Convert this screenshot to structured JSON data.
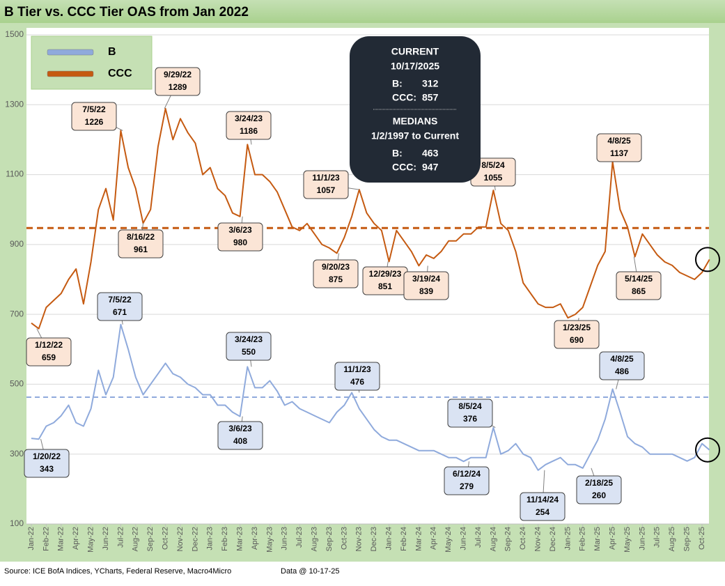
{
  "chart_data": {
    "type": "line",
    "title": "B Tier vs. CCC Tier OAS from Jan 2022",
    "source": "Source: ICE BofA Indices, YCharts, Federal Reserve, Macro4Micro",
    "data_note": "Data @ 10-17-25",
    "categories": [
      "Jan-22",
      null,
      "Feb-22",
      null,
      "Mar-22",
      null,
      "Apr-22",
      null,
      "May-22",
      null,
      "Jun-22",
      null,
      "Jul-22",
      null,
      "Aug-22",
      null,
      "Sep-22",
      null,
      "Oct-22",
      null,
      "Nov-22",
      null,
      "Dec-22",
      null,
      "Jan-23",
      null,
      "Feb-23",
      null,
      "Mar-23",
      null,
      "Apr-23",
      null,
      "May-23",
      null,
      "Jun-23",
      null,
      "Jul-23",
      null,
      "Aug-23",
      null,
      "Sep-23",
      null,
      "Oct-23",
      null,
      "Nov-23",
      null,
      "Dec-23",
      null,
      "Jan-24",
      null,
      "Feb-24",
      null,
      "Mar-24",
      null,
      "Apr-24",
      null,
      "May-24",
      null,
      "Jun-24",
      null,
      "Jul-24",
      null,
      "Aug-24",
      null,
      "Sep-24",
      null,
      "Oct-24",
      null,
      "Nov-24",
      null,
      "Dec-24",
      null,
      "Jan-25",
      null,
      "Feb-25",
      null,
      "Mar-25",
      null,
      "Apr-25",
      null,
      "May-25",
      null,
      "Jun-25",
      null,
      "Jul-25",
      null,
      "Aug-25",
      null,
      "Sep-25",
      null,
      "Oct-25",
      null
    ],
    "series": [
      {
        "name": "B",
        "color": "#8faadc",
        "values": [
          345,
          343,
          380,
          390,
          410,
          440,
          390,
          380,
          430,
          540,
          470,
          520,
          671,
          600,
          520,
          470,
          500,
          530,
          560,
          530,
          520,
          500,
          490,
          470,
          470,
          440,
          440,
          420,
          408,
          550,
          490,
          490,
          510,
          480,
          440,
          450,
          430,
          420,
          410,
          400,
          390,
          420,
          440,
          476,
          430,
          400,
          370,
          350,
          340,
          340,
          330,
          320,
          310,
          310,
          310,
          300,
          290,
          290,
          279,
          290,
          290,
          290,
          376,
          300,
          310,
          330,
          300,
          290,
          254,
          270,
          280,
          290,
          270,
          270,
          260,
          300,
          340,
          400,
          486,
          420,
          350,
          330,
          320,
          300,
          300,
          300,
          300,
          290,
          280,
          290,
          330,
          312
        ]
      },
      {
        "name": "CCC",
        "color": "#c55a11",
        "values": [
          675,
          659,
          720,
          740,
          760,
          800,
          830,
          730,
          850,
          1000,
          1060,
          970,
          1226,
          1120,
          1060,
          961,
          1000,
          1180,
          1289,
          1200,
          1260,
          1220,
          1190,
          1100,
          1120,
          1060,
          1040,
          990,
          980,
          1186,
          1100,
          1100,
          1080,
          1050,
          1000,
          950,
          940,
          960,
          930,
          900,
          890,
          875,
          920,
          980,
          1057,
          990,
          960,
          940,
          851,
          940,
          910,
          880,
          839,
          870,
          860,
          880,
          910,
          910,
          930,
          930,
          950,
          950,
          1055,
          960,
          940,
          880,
          790,
          760,
          730,
          720,
          720,
          730,
          690,
          700,
          720,
          780,
          840,
          880,
          1137,
          1000,
          950,
          865,
          930,
          900,
          870,
          850,
          840,
          820,
          810,
          800,
          820,
          857
        ]
      }
    ],
    "ylim": [
      100,
      1500
    ],
    "yticks": [
      100,
      300,
      500,
      700,
      900,
      1100,
      1300,
      1500
    ],
    "grid": true,
    "legend": "top-left",
    "annotations": [
      {
        "series": "CCC",
        "date": "1/12/22",
        "value": 659
      },
      {
        "series": "CCC",
        "date": "7/5/22",
        "value": 1226
      },
      {
        "series": "CCC",
        "date": "9/29/22",
        "value": 1289
      },
      {
        "series": "CCC",
        "date": "8/16/22",
        "value": 961
      },
      {
        "series": "CCC",
        "date": "3/24/23",
        "value": 1186
      },
      {
        "series": "CCC",
        "date": "3/6/23",
        "value": 980
      },
      {
        "series": "CCC",
        "date": "11/1/23",
        "value": 1057
      },
      {
        "series": "CCC",
        "date": "9/20/23",
        "value": 875
      },
      {
        "series": "CCC",
        "date": "12/29/23",
        "value": 851
      },
      {
        "series": "CCC",
        "date": "3/19/24",
        "value": 839
      },
      {
        "series": "CCC",
        "date": "8/5/24",
        "value": 1055
      },
      {
        "series": "CCC",
        "date": "1/23/25",
        "value": 690
      },
      {
        "series": "CCC",
        "date": "4/8/25",
        "value": 1137
      },
      {
        "series": "CCC",
        "date": "5/14/25",
        "value": 865
      },
      {
        "series": "B",
        "date": "7/5/22",
        "value": 671
      },
      {
        "series": "B",
        "date": "1/20/22",
        "value": 343
      },
      {
        "series": "B",
        "date": "3/24/23",
        "value": 550
      },
      {
        "series": "B",
        "date": "3/6/23",
        "value": 408
      },
      {
        "series": "B",
        "date": "11/1/23",
        "value": 476
      },
      {
        "series": "B",
        "date": "8/5/24",
        "value": 376
      },
      {
        "series": "B",
        "date": "6/12/24",
        "value": 279
      },
      {
        "series": "B",
        "date": "11/14/24",
        "value": 254
      },
      {
        "series": "B",
        "date": "2/18/25",
        "value": 260
      },
      {
        "series": "B",
        "date": "4/8/25",
        "value": 486
      }
    ],
    "info": {
      "current_title": "CURRENT",
      "current_date": "10/17/2025",
      "current": [
        {
          "label": "B:",
          "value": 312
        },
        {
          "label": "CCC:",
          "value": 857
        }
      ],
      "medians_title": "MEDIANS",
      "medians_range": "1/2/1997 to Current",
      "medians": [
        {
          "label": "B:",
          "value": 463
        },
        {
          "label": "CCC:",
          "value": 947
        }
      ]
    }
  }
}
